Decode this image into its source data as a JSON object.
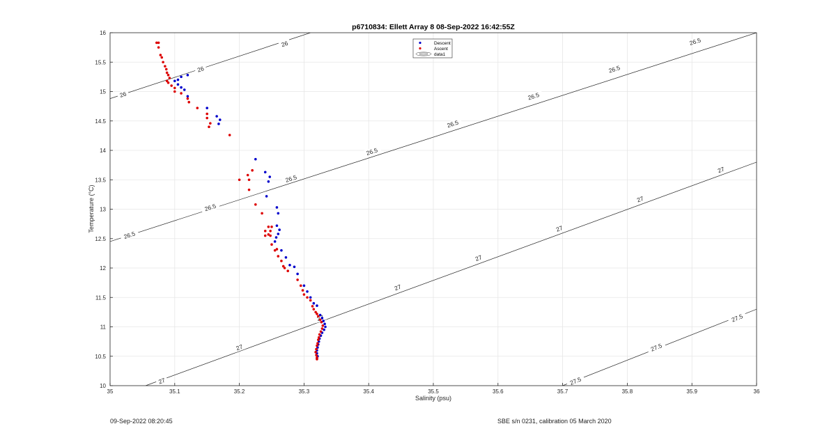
{
  "chart_data": {
    "type": "scatter",
    "title": "p6710834: Ellett Array 8 08-Sep-2022 16:42:55Z",
    "xlabel": "Salinity (psu)",
    "ylabel": "Temperature (°C)",
    "xlim": [
      35,
      36
    ],
    "ylim": [
      10,
      16
    ],
    "xticks": [
      "35",
      "35.1",
      "35.2",
      "35.3",
      "35.4",
      "35.5",
      "35.6",
      "35.7",
      "35.8",
      "35.9",
      "36"
    ],
    "yticks": [
      "10",
      "10.5",
      "11",
      "11.5",
      "12",
      "12.5",
      "13",
      "13.5",
      "14",
      "14.5",
      "15",
      "15.5",
      "16"
    ],
    "grid": true,
    "legend": {
      "placement": "top-center",
      "entries": [
        "Descent",
        "Ascent",
        "data1"
      ]
    },
    "colors": {
      "descent": "#0000cc",
      "ascent": "#dd0000",
      "contour": "#222222"
    },
    "contours": [
      {
        "level": "26",
        "points": [
          [
            35.0,
            14.88
          ],
          [
            35.31,
            16.0
          ]
        ],
        "labels": [
          {
            "x": 35.02,
            "y": 14.95
          },
          {
            "x": 35.14,
            "y": 15.38
          },
          {
            "x": 35.27,
            "y": 15.81
          }
        ]
      },
      {
        "level": "26.5",
        "points": [
          [
            35.0,
            12.45
          ],
          [
            36.0,
            16.0
          ]
        ],
        "labels": [
          {
            "x": 35.03,
            "y": 12.56
          },
          {
            "x": 35.155,
            "y": 13.03
          },
          {
            "x": 35.28,
            "y": 13.52
          },
          {
            "x": 35.405,
            "y": 13.98
          },
          {
            "x": 35.53,
            "y": 14.45
          },
          {
            "x": 35.655,
            "y": 14.92
          },
          {
            "x": 35.78,
            "y": 15.38
          },
          {
            "x": 35.905,
            "y": 15.85
          }
        ]
      },
      {
        "level": "27",
        "points": [
          [
            35.055,
            10.0
          ],
          [
            36.0,
            13.8
          ]
        ],
        "labels": [
          {
            "x": 35.08,
            "y": 10.08
          },
          {
            "x": 35.2,
            "y": 10.65
          },
          {
            "x": 35.325,
            "y": 11.15
          },
          {
            "x": 35.445,
            "y": 11.67
          },
          {
            "x": 35.57,
            "y": 12.17
          },
          {
            "x": 35.695,
            "y": 12.67
          },
          {
            "x": 35.82,
            "y": 13.17
          },
          {
            "x": 35.945,
            "y": 13.67
          }
        ]
      },
      {
        "level": "27.5",
        "points": [
          [
            35.7,
            10.0
          ],
          [
            36.0,
            11.3
          ]
        ],
        "labels": [
          {
            "x": 35.72,
            "y": 10.08
          },
          {
            "x": 35.845,
            "y": 10.65
          },
          {
            "x": 35.97,
            "y": 11.15
          }
        ]
      }
    ],
    "series": [
      {
        "name": "Descent",
        "points": [
          [
            35.1,
            15.18
          ],
          [
            35.105,
            15.2
          ],
          [
            35.11,
            15.25
          ],
          [
            35.12,
            15.28
          ],
          [
            35.105,
            15.12
          ],
          [
            35.11,
            15.07
          ],
          [
            35.115,
            15.03
          ],
          [
            35.12,
            14.92
          ],
          [
            35.15,
            14.72
          ],
          [
            35.165,
            14.58
          ],
          [
            35.17,
            14.52
          ],
          [
            35.168,
            14.45
          ],
          [
            35.225,
            13.85
          ],
          [
            35.24,
            13.63
          ],
          [
            35.247,
            13.55
          ],
          [
            35.245,
            13.47
          ],
          [
            35.242,
            13.22
          ],
          [
            35.258,
            13.03
          ],
          [
            35.26,
            12.93
          ],
          [
            35.258,
            12.72
          ],
          [
            35.262,
            12.65
          ],
          [
            35.26,
            12.58
          ],
          [
            35.257,
            12.52
          ],
          [
            35.255,
            12.45
          ],
          [
            35.265,
            12.3
          ],
          [
            35.272,
            12.18
          ],
          [
            35.278,
            12.05
          ],
          [
            35.285,
            12.02
          ],
          [
            35.29,
            11.9
          ],
          [
            35.3,
            11.7
          ],
          [
            35.305,
            11.6
          ],
          [
            35.31,
            11.5
          ],
          [
            35.315,
            11.4
          ],
          [
            35.32,
            11.36
          ],
          [
            35.325,
            11.2
          ],
          [
            35.328,
            11.15
          ],
          [
            35.33,
            11.1
          ],
          [
            35.332,
            11.05
          ],
          [
            35.333,
            11.0
          ],
          [
            35.331,
            10.95
          ],
          [
            35.328,
            10.9
          ],
          [
            35.326,
            10.85
          ],
          [
            35.324,
            10.8
          ],
          [
            35.323,
            10.75
          ],
          [
            35.322,
            10.7
          ],
          [
            35.321,
            10.65
          ],
          [
            35.32,
            10.6
          ],
          [
            35.32,
            10.55
          ],
          [
            35.321,
            10.5
          ],
          [
            35.32,
            10.46
          ]
        ]
      },
      {
        "name": "Ascent",
        "points": [
          [
            35.072,
            15.83
          ],
          [
            35.075,
            15.83
          ],
          [
            35.075,
            15.75
          ],
          [
            35.078,
            15.62
          ],
          [
            35.08,
            15.58
          ],
          [
            35.082,
            15.5
          ],
          [
            35.085,
            15.43
          ],
          [
            35.087,
            15.38
          ],
          [
            35.088,
            15.32
          ],
          [
            35.09,
            15.28
          ],
          [
            35.092,
            15.23
          ],
          [
            35.088,
            15.18
          ],
          [
            35.09,
            15.15
          ],
          [
            35.095,
            15.1
          ],
          [
            35.1,
            15.06
          ],
          [
            35.1,
            15.0
          ],
          [
            35.11,
            14.97
          ],
          [
            35.12,
            14.88
          ],
          [
            35.122,
            14.82
          ],
          [
            35.135,
            14.72
          ],
          [
            35.15,
            14.62
          ],
          [
            35.15,
            14.55
          ],
          [
            35.155,
            14.46
          ],
          [
            35.153,
            14.4
          ],
          [
            35.185,
            14.26
          ],
          [
            35.22,
            13.66
          ],
          [
            35.213,
            13.58
          ],
          [
            35.2,
            13.5
          ],
          [
            35.215,
            13.5
          ],
          [
            35.215,
            13.33
          ],
          [
            35.225,
            13.08
          ],
          [
            35.235,
            12.93
          ],
          [
            35.245,
            12.7
          ],
          [
            35.25,
            12.7
          ],
          [
            35.24,
            12.63
          ],
          [
            35.248,
            12.63
          ],
          [
            35.245,
            12.57
          ],
          [
            35.24,
            12.55
          ],
          [
            35.248,
            12.55
          ],
          [
            35.25,
            12.4
          ],
          [
            35.255,
            12.3
          ],
          [
            35.258,
            12.32
          ],
          [
            35.26,
            12.2
          ],
          [
            35.265,
            12.12
          ],
          [
            35.268,
            12.03
          ],
          [
            35.27,
            12.0
          ],
          [
            35.275,
            11.95
          ],
          [
            35.29,
            11.8
          ],
          [
            35.295,
            11.7
          ],
          [
            35.298,
            11.62
          ],
          [
            35.3,
            11.55
          ],
          [
            35.305,
            11.5
          ],
          [
            35.31,
            11.45
          ],
          [
            35.313,
            11.35
          ],
          [
            35.315,
            11.3
          ],
          [
            35.318,
            11.25
          ],
          [
            35.32,
            11.22
          ],
          [
            35.322,
            11.18
          ],
          [
            35.325,
            11.12
          ],
          [
            35.327,
            11.08
          ],
          [
            35.329,
            11.02
          ],
          [
            35.328,
            10.97
          ],
          [
            35.326,
            10.92
          ],
          [
            35.324,
            10.87
          ],
          [
            35.323,
            10.82
          ],
          [
            35.322,
            10.78
          ],
          [
            35.321,
            10.72
          ],
          [
            35.32,
            10.68
          ],
          [
            35.319,
            10.62
          ],
          [
            35.318,
            10.57
          ],
          [
            35.319,
            10.52
          ],
          [
            35.32,
            10.48
          ],
          [
            35.32,
            10.45
          ]
        ]
      }
    ]
  },
  "footer": {
    "left": "09-Sep-2022 08:20:45",
    "right": "SBE s/n 0231, calibration 05 March 2020"
  }
}
